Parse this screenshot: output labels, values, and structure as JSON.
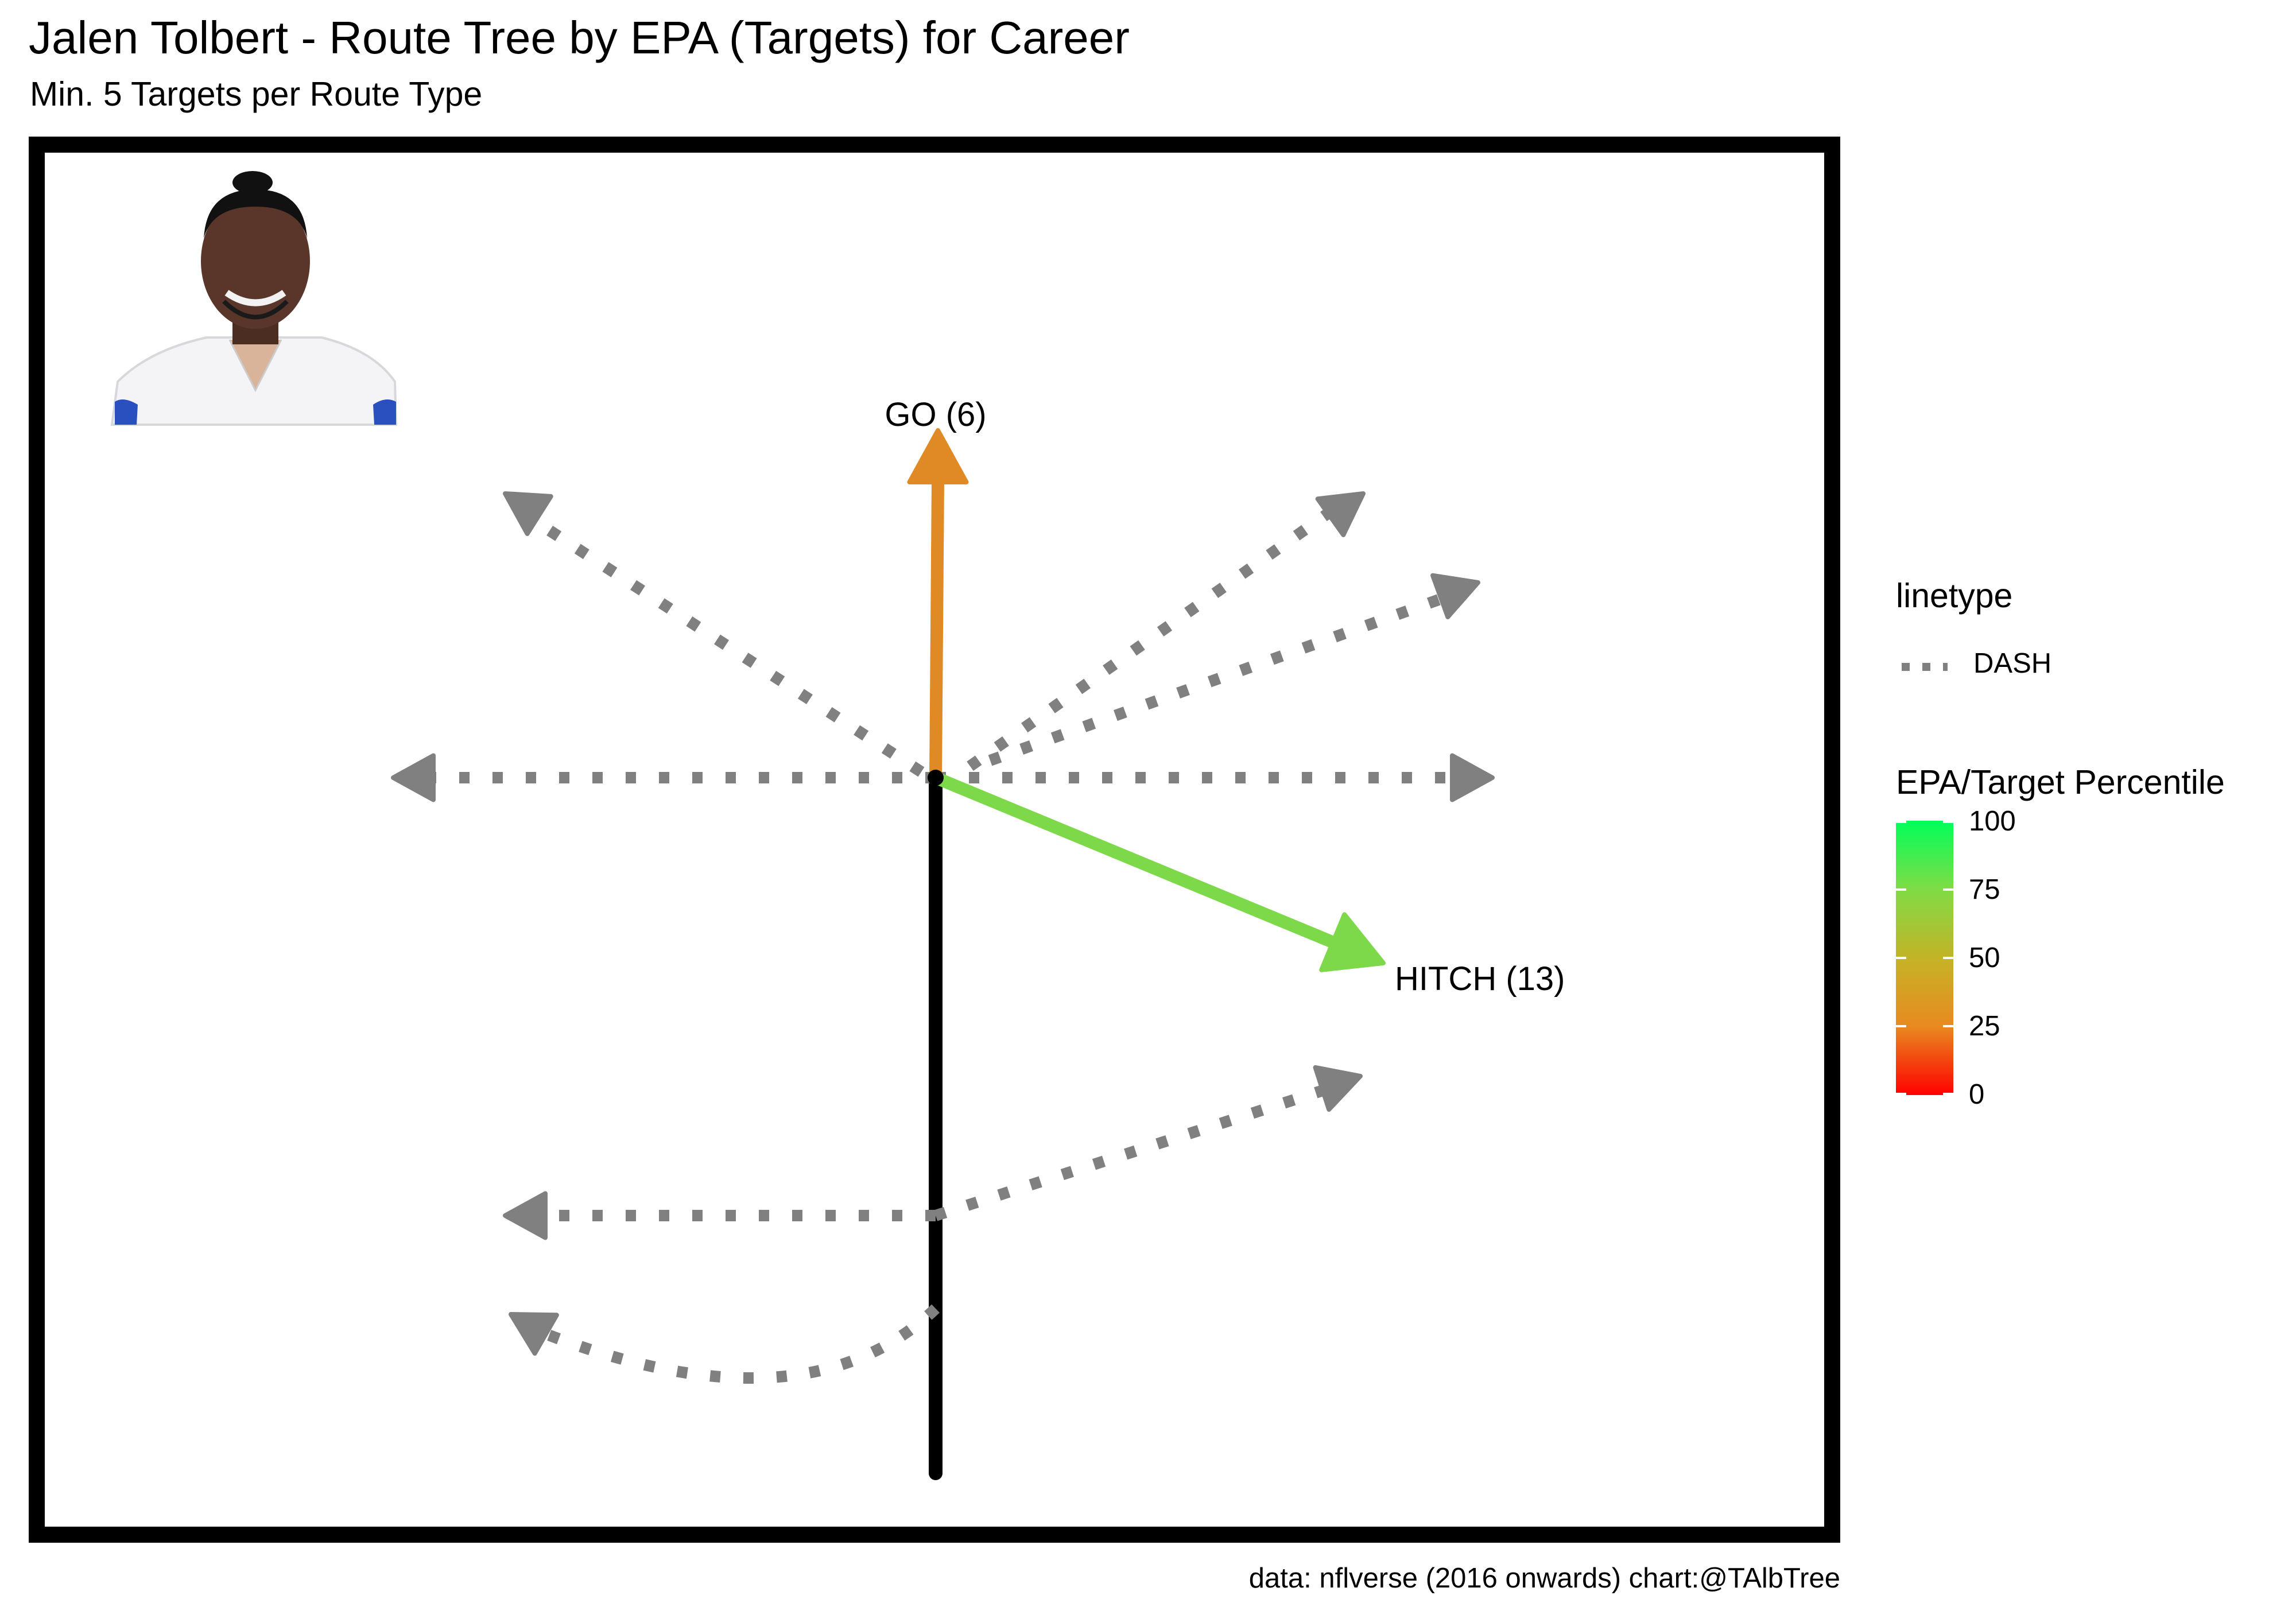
{
  "chart_data": {
    "type": "route-tree",
    "title": "Jalen Tolbert - Route Tree by EPA (Targets) for Career",
    "subtitle": "Min. 5 Targets per Route Type",
    "caption": "data: nflverse (2016 onwards)  chart:@TAlbTree",
    "labeled_routes": [
      {
        "label": "GO (6)",
        "route": "GO",
        "targets": 6,
        "percentile_approx": 28,
        "color": "#e08a26"
      },
      {
        "label": "HITCH (13)",
        "route": "HITCH",
        "targets": 13,
        "percentile_approx": 80,
        "color": "#7dd94a"
      }
    ],
    "unlabeled_routes_color": "#808080",
    "unlabeled_routes_linetype": "DASH",
    "legend": {
      "linetype_title": "linetype",
      "linetype_entries": [
        "DASH"
      ],
      "color_title": "EPA/Target Percentile",
      "color_ticks": [
        "100",
        "75",
        "50",
        "25",
        "0"
      ],
      "color_range": [
        0,
        100
      ],
      "color_low": "#ff0000",
      "color_high": "#00ff5a"
    },
    "grid": false,
    "image": "player-headshot"
  }
}
